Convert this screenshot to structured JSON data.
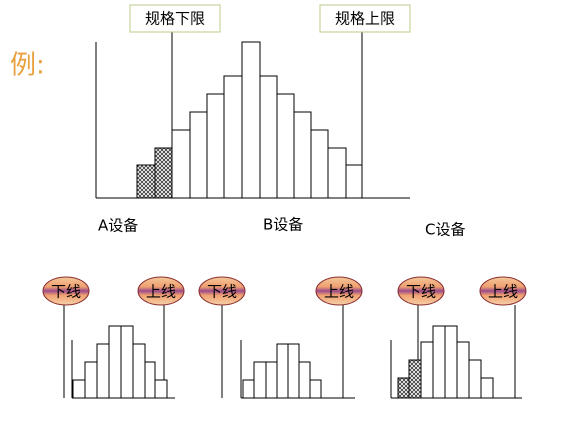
{
  "example_label": "例:",
  "top": {
    "lower_limit": "规格下限",
    "upper_limit": "规格上限",
    "devices": [
      "A设备",
      "B设备",
      "C设备"
    ]
  },
  "panels": [
    {
      "lower": "下线",
      "upper": "上线"
    },
    {
      "lower": "下线",
      "upper": "上线"
    },
    {
      "lower": "下线",
      "upper": "上线"
    }
  ]
}
